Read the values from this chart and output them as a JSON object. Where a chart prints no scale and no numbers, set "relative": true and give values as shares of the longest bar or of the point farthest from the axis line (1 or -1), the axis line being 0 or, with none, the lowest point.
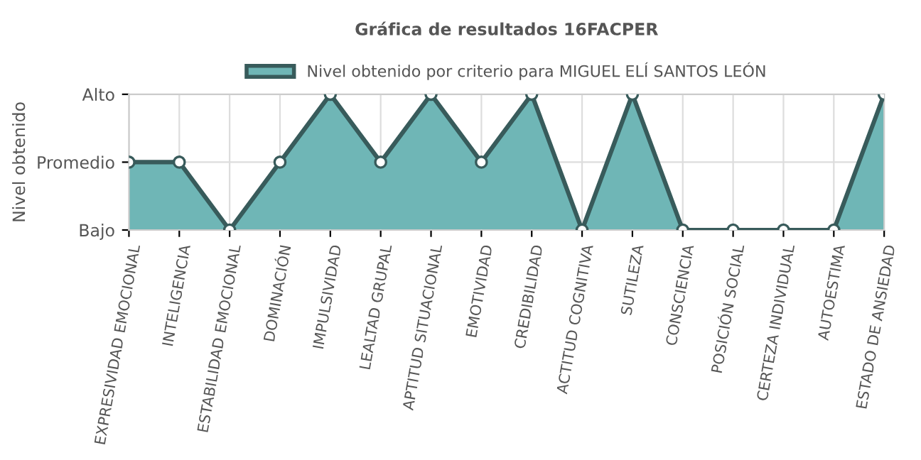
{
  "chart_data": {
    "type": "area",
    "title": "Gráfica de resultados 16FACPER",
    "ylabel": "Nivel obtenido",
    "categories": [
      "EXPRESIVIDAD EMOCIONAL",
      "INTELIGENCIA",
      "ESTABILIDAD EMOCIONAL",
      "DOMINACIÓN",
      "IMPULSIVIDAD",
      "LEALTAD GRUPAL",
      "APTITUD SITUACIONAL",
      "EMOTIVIDAD",
      "CREDIBILIDAD",
      "ACTITUD COGNITIVA",
      "SUTILEZA",
      "CONSCIENCIA",
      "POSICIÓN SOCIAL",
      "CERTEZA INDIVIDUAL",
      "AUTOESTIMA",
      "ESTADO DE ANSIEDAD"
    ],
    "y_categories": [
      "Alto",
      "Promedio",
      "Bajo"
    ],
    "relative": true,
    "series": [
      {
        "name": "Nivel obtenido por criterio para MIGUEL ELÍ SANTOS LEÓN",
        "color": "#6fb6b6",
        "values": [
          0.5,
          0.5,
          0,
          0.5,
          1,
          0.5,
          1,
          0.5,
          1,
          0,
          1,
          0,
          0,
          0,
          0,
          1
        ]
      }
    ],
    "grid": true,
    "legend": "top",
    "marker": "circle"
  }
}
